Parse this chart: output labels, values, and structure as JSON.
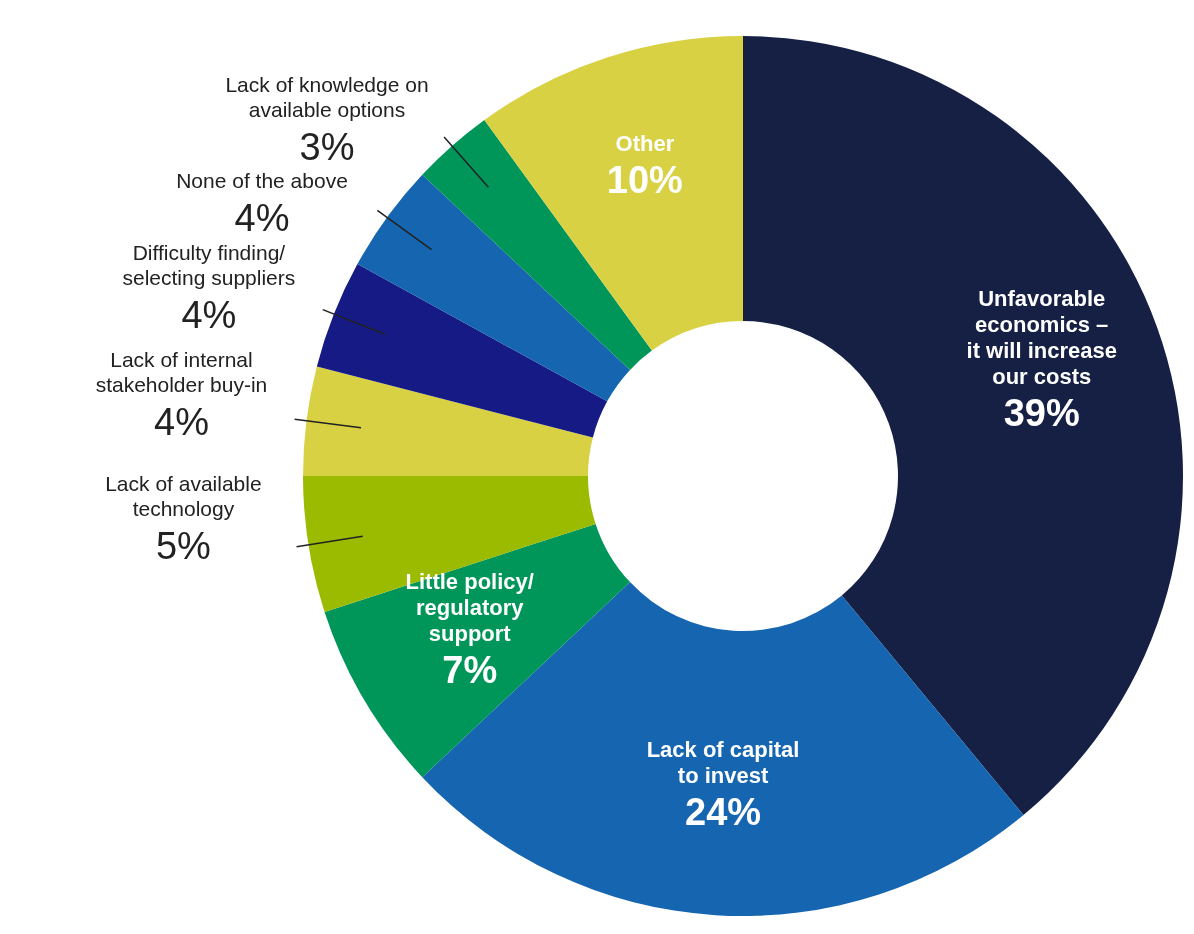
{
  "chart_data": {
    "type": "donut",
    "categories": [
      "Unfavorable\neconomics –\nit will increase\nour costs",
      "Lack of capital\nto invest",
      "Little policy/\nregulatory\nsupport",
      "Lack of available\ntechnology",
      "Lack of internal\nstakeholder buy-in",
      "Difficulty finding/\nselecting suppliers",
      "None of the above",
      "Lack of knowledge on\navailable options",
      "Other"
    ],
    "values": [
      39,
      24,
      7,
      5,
      4,
      4,
      4,
      3,
      10
    ],
    "value_labels": [
      "39%",
      "24%",
      "7%",
      "5%",
      "4%",
      "4%",
      "4%",
      "3%",
      "10%"
    ],
    "colors": [
      "#162044",
      "#1565b0",
      "#00965a",
      "#9bbb00",
      "#d9d144",
      "#151a85",
      "#1565b0",
      "#00965a",
      "#d9d144"
    ]
  }
}
